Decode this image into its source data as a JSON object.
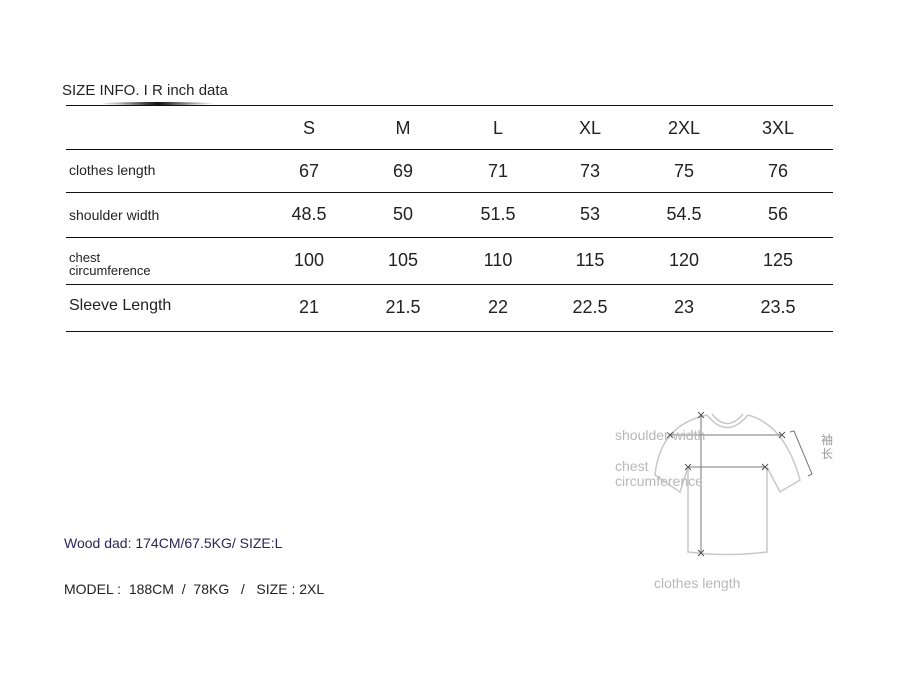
{
  "title": "SIZE INFO. I R inch data",
  "table": {
    "sizes": [
      "S",
      "M",
      "L",
      "XL",
      "2XL",
      "3XL"
    ],
    "rows": [
      {
        "label": "clothes length",
        "values": [
          "67",
          "69",
          "71",
          "73",
          "75",
          "76"
        ]
      },
      {
        "label": "shoulder width",
        "values": [
          "48.5",
          "50",
          "51.5",
          "53",
          "54.5",
          "56"
        ]
      },
      {
        "label_line1": "chest",
        "label_line2": "circumference",
        "values": [
          "100",
          "105",
          "110",
          "115",
          "120",
          "125"
        ]
      },
      {
        "label": "Sleeve Length",
        "values": [
          "21",
          "21.5",
          "22",
          "22.5",
          "23",
          "23.5"
        ]
      }
    ]
  },
  "notes": {
    "wood_dad": "Wood dad: 174CM/67.5KG/ SIZE:L",
    "model": "MODEL :  188CM  /  78KG   /   SIZE : 2XL"
  },
  "diagram": {
    "shoulder_width": "shoulder width",
    "chest_line1": "chest",
    "chest_line2": "circumference",
    "sleeve_length": "袖长",
    "clothes_length": "clothes length"
  },
  "colors": {
    "note_text": "#2b2656",
    "diagram_label": "#b8b8b8"
  }
}
